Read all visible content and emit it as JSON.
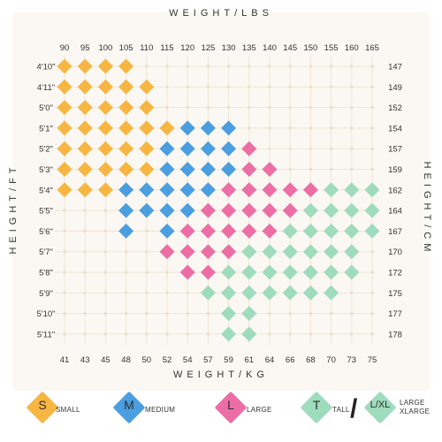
{
  "titles": {
    "top": "WEIGHT/LBS",
    "bottom": "WEIGHT/KG",
    "left": "HEIGHT/FT",
    "right": "HEIGHT/CM"
  },
  "colors": {
    "S": "#f7b641",
    "M": "#4b9ee0",
    "L": "#ec6ea5",
    "T": "#9fdbbd",
    "panel": "#fbf8f3",
    "grid": "#efe5d6"
  },
  "legend": [
    {
      "code": "S",
      "letter": "S",
      "label": "SMALL"
    },
    {
      "code": "M",
      "letter": "M",
      "label": "MEDIUM"
    },
    {
      "code": "L",
      "letter": "L",
      "label": "LARGE"
    },
    {
      "code": "T",
      "letter": "T",
      "label": "TALL"
    },
    {
      "code": "T",
      "letter": "L/XL",
      "label_lines": [
        "LARGE",
        "XLARGE"
      ]
    }
  ],
  "legend_separator": "/",
  "chart_data": {
    "type": "heatmap",
    "x_top": {
      "label": "WEIGHT/LBS",
      "ticks": [
        "90",
        "95",
        "100",
        "105",
        "110",
        "115",
        "120",
        "125",
        "130",
        "135",
        "140",
        "145",
        "150",
        "155",
        "160",
        "165"
      ]
    },
    "x_bottom": {
      "label": "WEIGHT/KG",
      "ticks": [
        "41",
        "43",
        "45",
        "48",
        "50",
        "52",
        "54",
        "57",
        "59",
        "61",
        "64",
        "66",
        "68",
        "70",
        "73",
        "75"
      ]
    },
    "y_left": {
      "label": "HEIGHT/FT",
      "ticks": [
        "4'10\"",
        "4'11\"",
        "5'0\"",
        "5'1\"",
        "5'2\"",
        "5'3\"",
        "5'4\"",
        "5'5\"",
        "5'6\"",
        "5'7\"",
        "5'8\"",
        "5'9\"",
        "5'10\"",
        "5'11\""
      ]
    },
    "y_right": {
      "label": "HEIGHT/CM",
      "ticks": [
        "147",
        "149",
        "152",
        "154",
        "157",
        "159",
        "162",
        "164",
        "167",
        "170",
        "172",
        "175",
        "177",
        "178"
      ]
    },
    "rows": [
      {
        "height": "4'10\"",
        "sizes": [
          "S",
          "S",
          "S",
          "S",
          "",
          "",
          "",
          "",
          "",
          "",
          "",
          "",
          "",
          "",
          "",
          ""
        ]
      },
      {
        "height": "4'11\"",
        "sizes": [
          "S",
          "S",
          "S",
          "S",
          "S",
          "",
          "",
          "",
          "",
          "",
          "",
          "",
          "",
          "",
          "",
          ""
        ]
      },
      {
        "height": "5'0\"",
        "sizes": [
          "S",
          "S",
          "S",
          "S",
          "S",
          "",
          "",
          "",
          "",
          "",
          "",
          "",
          "",
          "",
          "",
          ""
        ]
      },
      {
        "height": "5'1\"",
        "sizes": [
          "S",
          "S",
          "S",
          "S",
          "S",
          "S",
          "M",
          "M",
          "M",
          "",
          "",
          "",
          "",
          "",
          "",
          ""
        ]
      },
      {
        "height": "5'2\"",
        "sizes": [
          "S",
          "S",
          "S",
          "S",
          "S",
          "M",
          "M",
          "M",
          "M",
          "L",
          "",
          "",
          "",
          "",
          "",
          ""
        ]
      },
      {
        "height": "5'3\"",
        "sizes": [
          "S",
          "S",
          "S",
          "S",
          "S",
          "M",
          "M",
          "M",
          "M",
          "L",
          "L",
          "",
          "",
          "",
          "",
          ""
        ]
      },
      {
        "height": "5'4\"",
        "sizes": [
          "S",
          "S",
          "S",
          "M",
          "M",
          "M",
          "M",
          "M",
          "L",
          "L",
          "L",
          "L",
          "L",
          "T",
          "T",
          "T"
        ]
      },
      {
        "height": "5'5\"",
        "sizes": [
          "",
          "",
          "",
          "M",
          "M",
          "M",
          "M",
          "L",
          "L",
          "L",
          "L",
          "L",
          "T",
          "T",
          "T",
          "T"
        ]
      },
      {
        "height": "5'6\"",
        "sizes": [
          "",
          "",
          "",
          "M",
          "",
          "M",
          "L",
          "L",
          "L",
          "L",
          "L",
          "T",
          "T",
          "T",
          "T",
          "T"
        ]
      },
      {
        "height": "5'7\"",
        "sizes": [
          "",
          "",
          "",
          "",
          "",
          "L",
          "L",
          "L",
          "L",
          "T",
          "T",
          "T",
          "T",
          "T",
          "T",
          ""
        ]
      },
      {
        "height": "5'8\"",
        "sizes": [
          "",
          "",
          "",
          "",
          "",
          "",
          "L",
          "L",
          "T",
          "T",
          "T",
          "T",
          "T",
          "T",
          "T",
          ""
        ]
      },
      {
        "height": "5'9\"",
        "sizes": [
          "",
          "",
          "",
          "",
          "",
          "",
          "",
          "T",
          "T",
          "T",
          "T",
          "T",
          "T",
          "T",
          "",
          ""
        ]
      },
      {
        "height": "5'10\"",
        "sizes": [
          "",
          "",
          "",
          "",
          "",
          "",
          "",
          "",
          "T",
          "T",
          "",
          "",
          "",
          "",
          "",
          ""
        ]
      },
      {
        "height": "5'11\"",
        "sizes": [
          "",
          "",
          "",
          "",
          "",
          "",
          "",
          "",
          "T",
          "T",
          "",
          "",
          "",
          "",
          "",
          ""
        ]
      }
    ]
  }
}
